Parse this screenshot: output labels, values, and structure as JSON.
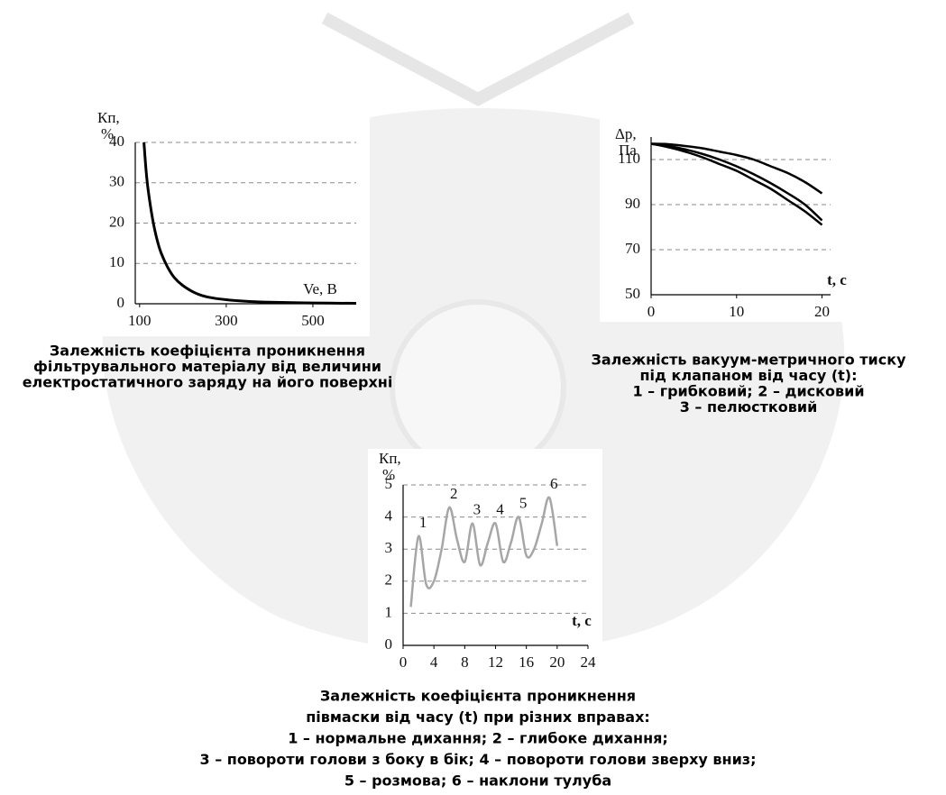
{
  "chart_data": [
    {
      "type": "line",
      "y_label": [
        "Кп,",
        "%"
      ],
      "x_label": "Ve, В",
      "x": [
        110,
        115,
        120,
        130,
        140,
        150,
        165,
        180,
        200,
        230,
        260,
        300,
        350,
        400,
        500,
        600
      ],
      "series": [
        {
          "color": "#000000",
          "values": [
            40,
            33,
            28,
            21,
            16,
            12.5,
            9,
            6.5,
            4.5,
            2.6,
            1.6,
            1.0,
            0.6,
            0.4,
            0.2,
            0.1
          ]
        }
      ],
      "xlim": [
        90,
        600
      ],
      "xticks": [
        100,
        300,
        500
      ],
      "ylim": [
        0,
        40
      ],
      "yticks": [
        0,
        10,
        20,
        30,
        40
      ],
      "grid": true,
      "caption": [
        "Залежність коефіцієнта проникнення",
        "фільтрувального матеріалу від величини",
        "електростатичного заряду на його поверхні"
      ]
    },
    {
      "type": "line",
      "y_label": [
        "Δp,",
        "Па"
      ],
      "x_label": "t, с",
      "x": [
        0,
        2,
        4,
        6,
        8,
        10,
        12,
        14,
        16,
        18,
        20
      ],
      "series": [
        {
          "color": "#000000",
          "values": [
            117,
            116.8,
            116,
            115,
            113.5,
            112,
            110,
            107,
            104,
            100,
            95
          ]
        },
        {
          "color": "#000000",
          "values": [
            117,
            116,
            114.5,
            112.5,
            110,
            107,
            103.5,
            99.5,
            95,
            90,
            83
          ]
        },
        {
          "color": "#000000",
          "values": [
            117,
            115.5,
            113.5,
            111,
            108,
            105,
            101,
            97,
            92,
            87,
            81
          ]
        }
      ],
      "xlim": [
        0,
        21
      ],
      "xticks": [
        0,
        10,
        20
      ],
      "ylim": [
        50,
        120
      ],
      "yticks": [
        50,
        70,
        90,
        110
      ],
      "grid": true,
      "caption": [
        "Залежність вакуум-метричного тиску",
        "під клапаном від часу (t):",
        "1 – грибковий; 2 – дисковий",
        "3 – пелюстковий"
      ]
    },
    {
      "type": "line",
      "y_label": [
        "Кп,",
        "%"
      ],
      "x_label": "t, с",
      "x": [
        1,
        2,
        3,
        4,
        5,
        6,
        7,
        8,
        9,
        10,
        11,
        12,
        13,
        14,
        15,
        16,
        17,
        18,
        19,
        20
      ],
      "series": [
        {
          "color": "#a6a6a6",
          "values": [
            1.2,
            3.4,
            1.9,
            2.0,
            3.0,
            4.3,
            3.3,
            2.6,
            3.8,
            2.5,
            3.2,
            3.8,
            2.6,
            3.2,
            4.0,
            2.8,
            3.0,
            3.8,
            4.6,
            3.1
          ]
        }
      ],
      "xlim": [
        0,
        24
      ],
      "xticks": [
        0,
        4,
        8,
        12,
        16,
        20,
        24
      ],
      "ylim": [
        0,
        5
      ],
      "yticks": [
        0,
        1,
        2,
        3,
        4,
        5
      ],
      "grid": true,
      "annotations": [
        {
          "text": "1",
          "x": 2,
          "y": 3.4
        },
        {
          "text": "2",
          "x": 6,
          "y": 4.3
        },
        {
          "text": "3",
          "x": 9,
          "y": 3.8
        },
        {
          "text": "4",
          "x": 12,
          "y": 3.8
        },
        {
          "text": "5",
          "x": 15,
          "y": 4.0
        },
        {
          "text": "6",
          "x": 19,
          "y": 4.6
        }
      ],
      "caption": [
        "Залежність коефіцієнта проникнення",
        "півмаски від часу (t) при різних вправах:",
        "1 – нормальне дихання; 2 – глибоке дихання;",
        "3 – повороти голови з боку в бік; 4 – повороти голови зверху вниз;",
        "5 – розмова; 6 – наклони тулуба"
      ]
    }
  ]
}
